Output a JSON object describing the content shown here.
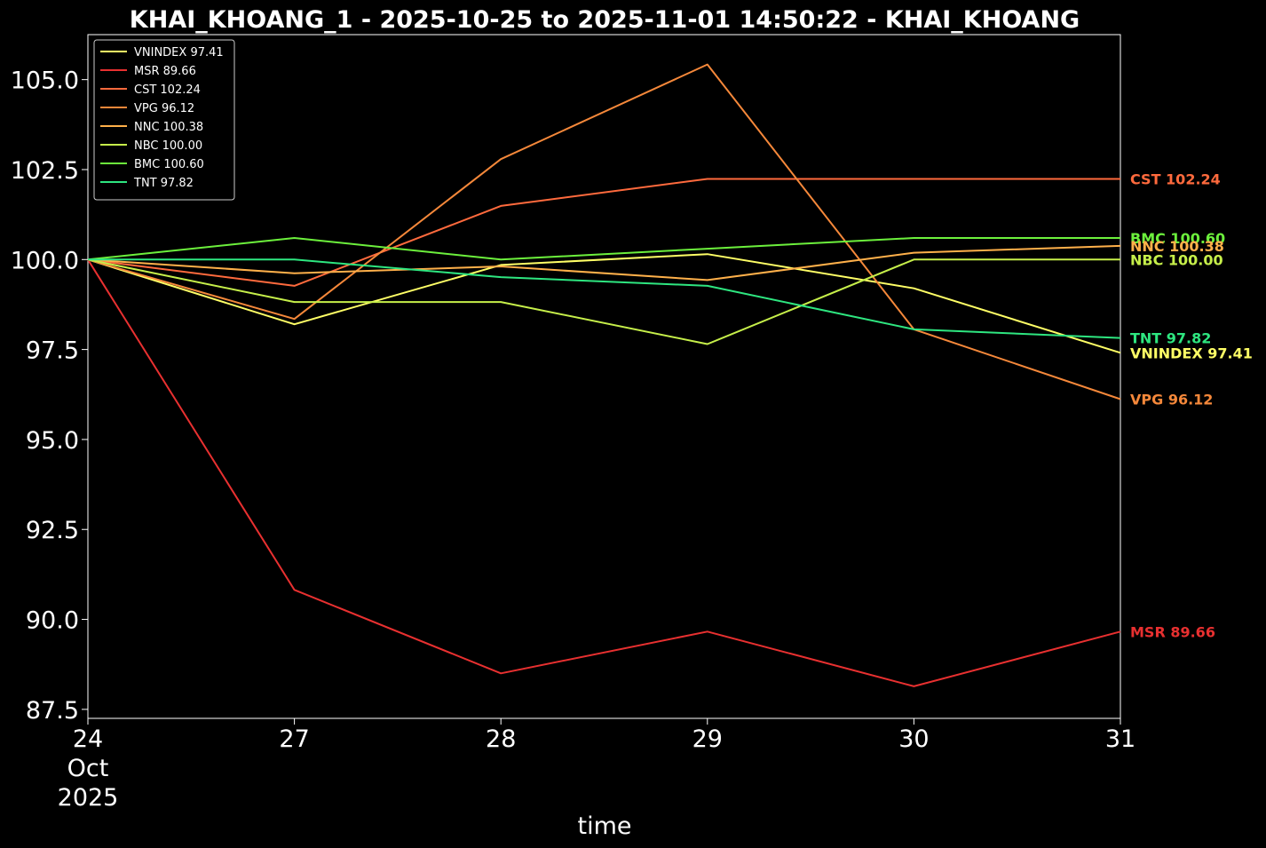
{
  "chart_data": {
    "type": "line",
    "title": "KHAI_KHOANG_1 - 2025-10-25 to 2025-11-01 14:50:22 - KHAI_KHOANG",
    "xlabel": "time",
    "ylabel": "",
    "x": [
      "2025-10-24",
      "2025-10-27",
      "2025-10-28",
      "2025-10-29",
      "2025-10-30",
      "2025-10-31"
    ],
    "x_tick_labels": [
      [
        "24",
        "Oct",
        "2025"
      ],
      [
        "27"
      ],
      [
        "28"
      ],
      [
        "29"
      ],
      [
        "30"
      ],
      [
        "31"
      ]
    ],
    "ylim": [
      87.25,
      106.25
    ],
    "y_ticks": [
      87.5,
      90.0,
      92.5,
      95.0,
      97.5,
      100.0,
      102.5,
      105.0
    ],
    "y_tick_labels": [
      "87.5",
      "90.0",
      "92.5",
      "95.0",
      "97.5",
      "100.0",
      "102.5",
      "105.0"
    ],
    "grid": false,
    "legend_position": "top-left",
    "background": "#000000",
    "series": [
      {
        "name": "VNINDEX 97.41",
        "color": "#ffff66",
        "values": [
          100.0,
          98.2,
          99.85,
          100.15,
          99.2,
          97.41
        ]
      },
      {
        "name": "MSR 89.66",
        "color": "#e83030",
        "values": [
          100.0,
          90.82,
          88.5,
          89.66,
          88.14,
          89.66
        ]
      },
      {
        "name": "CST 102.24",
        "color": "#ff6a3d",
        "values": [
          100.0,
          99.27,
          101.49,
          102.24,
          102.24,
          102.24
        ]
      },
      {
        "name": "VPG 96.12",
        "color": "#f5883a",
        "values": [
          100.0,
          98.35,
          102.79,
          105.42,
          98.06,
          96.12
        ]
      },
      {
        "name": "NNC 100.38",
        "color": "#ffb04a",
        "values": [
          100.0,
          99.62,
          99.81,
          99.43,
          100.19,
          100.38
        ]
      },
      {
        "name": "NBC 100.00",
        "color": "#c6ef4a",
        "values": [
          100.0,
          98.82,
          98.82,
          97.65,
          100.0,
          100.0
        ]
      },
      {
        "name": "BMC 100.60",
        "color": "#6cf03c",
        "values": [
          100.0,
          100.6,
          100.0,
          100.3,
          100.6,
          100.6
        ]
      },
      {
        "name": "TNT 97.82",
        "color": "#2ee680",
        "values": [
          100.0,
          100.0,
          99.51,
          99.27,
          98.06,
          97.82
        ]
      }
    ],
    "end_labels": [
      {
        "text": "CST 102.24",
        "color": "#ff6a3d"
      },
      {
        "text": "BMC 100.60",
        "color": "#6cf03c"
      },
      {
        "text": "NNC 100.38",
        "color": "#ffb04a"
      },
      {
        "text": "NBC 100.00",
        "color": "#c6ef4a"
      },
      {
        "text": "TNT 97.82",
        "color": "#2ee680"
      },
      {
        "text": "VNINDEX 97.41",
        "color": "#ffff66"
      },
      {
        "text": "VPG 96.12",
        "color": "#f5883a"
      },
      {
        "text": "MSR 89.66",
        "color": "#e83030"
      }
    ]
  }
}
